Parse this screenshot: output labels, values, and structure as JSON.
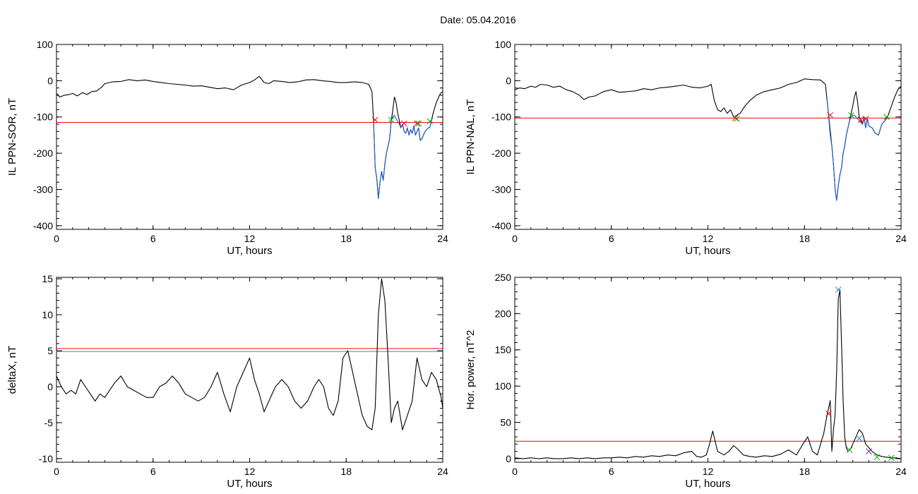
{
  "figure_title": "Date:  05.04.2016",
  "chart_data": [
    {
      "type": "line",
      "xlabel": "UT, hours",
      "ylabel": "IL PPN-SOR, nT",
      "xlim": [
        0,
        24
      ],
      "ylim": [
        -410,
        100
      ],
      "xticks": [
        "0",
        "6",
        "12",
        "18",
        "24"
      ],
      "yticks": [
        "100",
        "0",
        "-100",
        "-200",
        "-300",
        "-400"
      ],
      "grid": false,
      "series": [
        {
          "color": "#000000",
          "x": [
            0,
            0.2,
            0.5,
            0.8,
            1,
            1.3,
            1.6,
            1.9,
            2.2,
            2.5,
            2.8,
            3,
            3.5,
            4,
            4.5,
            5,
            5.5,
            6,
            6.5,
            7,
            7.5,
            8,
            8.5,
            9,
            9.5,
            10,
            10.5,
            11,
            11.5,
            12,
            12.3,
            12.6,
            12.9,
            13.2,
            13.5,
            14,
            14.5,
            15,
            15.5,
            16,
            16.5,
            17,
            17.5,
            18,
            18.5,
            19,
            19.4,
            19.6,
            19.7,
            19.8,
            19.9,
            20,
            20.1,
            20.2,
            20.3,
            20.4,
            20.5,
            20.6,
            20.7,
            20.8,
            20.9,
            21,
            21.1,
            21.2,
            21.3,
            21.4,
            21.5,
            21.6,
            21.7,
            21.8,
            21.9,
            22,
            22.1,
            22.2,
            22.3,
            22.4,
            22.5,
            22.6,
            22.7,
            22.8,
            22.9,
            23,
            23.1,
            23.2,
            23.3,
            23.4,
            23.5,
            23.6,
            23.7,
            23.8,
            23.9,
            24
          ],
          "y": [
            -35,
            -45,
            -40,
            -38,
            -35,
            -42,
            -33,
            -38,
            -30,
            -28,
            -18,
            -8,
            -3,
            -2,
            3,
            0,
            2,
            -2,
            -5,
            -8,
            -10,
            -12,
            -15,
            -14,
            -18,
            -22,
            -20,
            -25,
            -12,
            -5,
            2,
            12,
            -5,
            -8,
            0,
            -2,
            -5,
            -3,
            2,
            3,
            0,
            -2,
            -5,
            -5,
            -3,
            -5,
            -10,
            -30,
            -110,
            -240,
            -270,
            -325,
            -280,
            -250,
            -275,
            -230,
            -200,
            -180,
            -160,
            -110,
            -80,
            -45,
            -60,
            -90,
            -110,
            -130,
            -120,
            -140,
            -145,
            -130,
            -150,
            -135,
            -145,
            -125,
            -150,
            -140,
            -130,
            -165,
            -160,
            -150,
            -140,
            -135,
            -130,
            -128,
            -110,
            -90,
            -75,
            -60,
            -50,
            -40,
            -33,
            -30
          ]
        },
        {
          "color": "#1f5fd0",
          "x": [
            19.7,
            19.8,
            19.9,
            20,
            20.1,
            20.2,
            20.3,
            20.4,
            20.5,
            20.6,
            20.7,
            20.8,
            20.9,
            21,
            21.1,
            21.2,
            21.3,
            21.4,
            21.5,
            21.6,
            21.7,
            21.8,
            21.9,
            22,
            22.1,
            22.2,
            22.3,
            22.4,
            22.5,
            22.6,
            22.7,
            22.8,
            22.9,
            23,
            23.1,
            23.2,
            23.3
          ],
          "y": [
            -110,
            -240,
            -270,
            -325,
            -280,
            -250,
            -275,
            -230,
            -200,
            -180,
            -160,
            -110,
            -100,
            -95,
            -105,
            -112,
            -120,
            -130,
            -120,
            -140,
            -145,
            -130,
            -150,
            -135,
            -145,
            -125,
            -150,
            -140,
            -130,
            -165,
            -160,
            -150,
            -140,
            -135,
            -130,
            -128,
            -110
          ]
        }
      ],
      "hlines": [
        {
          "y": -115,
          "color": "#ff0000"
        }
      ],
      "markers": [
        {
          "x": 19.8,
          "y": -108,
          "color": "#ff0000"
        },
        {
          "x": 20.8,
          "y": -108,
          "color": "#00b000"
        },
        {
          "x": 21.6,
          "y": -118,
          "color": "#ff0000"
        },
        {
          "x": 22.4,
          "y": -118,
          "color": "#ff0000"
        },
        {
          "x": 22.5,
          "y": -118,
          "color": "#00b000"
        },
        {
          "x": 23.2,
          "y": -112,
          "color": "#00b000"
        }
      ]
    },
    {
      "type": "line",
      "xlabel": "UT, hours",
      "ylabel": "IL PPN-NAL, nT",
      "xlim": [
        0,
        24
      ],
      "ylim": [
        -410,
        100
      ],
      "xticks": [
        "0",
        "6",
        "12",
        "18",
        "24"
      ],
      "yticks": [
        "100",
        "0",
        "-100",
        "-200",
        "-300",
        "-400"
      ],
      "grid": false,
      "series": [
        {
          "color": "#000000",
          "x": [
            0,
            0.3,
            0.6,
            1,
            1.3,
            1.6,
            2,
            2.4,
            2.8,
            3.2,
            3.6,
            4,
            4.3,
            4.6,
            5,
            5.5,
            6,
            6.5,
            7,
            7.5,
            8,
            8.5,
            9,
            9.5,
            10,
            10.5,
            11,
            11.5,
            12,
            12.2,
            12.4,
            12.6,
            12.8,
            13,
            13.2,
            13.4,
            13.6,
            13.8,
            14,
            14.3,
            14.6,
            15,
            15.5,
            16,
            16.5,
            17,
            17.5,
            18,
            18.5,
            19,
            19.3,
            19.5,
            19.7,
            19.8,
            19.9,
            20,
            20.1,
            20.2,
            20.3,
            20.4,
            20.5,
            20.6,
            20.7,
            20.8,
            20.9,
            21,
            21.1,
            21.2,
            21.3,
            21.4,
            21.5,
            21.6,
            21.7,
            21.8,
            21.9,
            22,
            22.2,
            22.4,
            22.6,
            22.8,
            23,
            23.2,
            23.4,
            23.6,
            23.8,
            24
          ],
          "y": [
            -25,
            -20,
            -22,
            -15,
            -18,
            -10,
            -12,
            -18,
            -15,
            -25,
            -30,
            -40,
            -52,
            -45,
            -42,
            -30,
            -25,
            -32,
            -30,
            -28,
            -22,
            -25,
            -20,
            -18,
            -15,
            -12,
            -18,
            -20,
            -15,
            -10,
            -55,
            -80,
            -85,
            -75,
            -90,
            -80,
            -100,
            -95,
            -90,
            -70,
            -55,
            -40,
            -30,
            -25,
            -20,
            -10,
            -5,
            5,
            3,
            2,
            -10,
            -95,
            -180,
            -230,
            -300,
            -330,
            -290,
            -260,
            -240,
            -200,
            -180,
            -150,
            -130,
            -110,
            -90,
            -70,
            -45,
            -30,
            -60,
            -100,
            -110,
            -120,
            -100,
            -130,
            -105,
            -125,
            -130,
            -145,
            -150,
            -120,
            -110,
            -95,
            -70,
            -45,
            -25,
            -15
          ]
        },
        {
          "color": "#1f5fd0",
          "x": [
            19.4,
            19.6,
            19.7,
            19.8,
            19.9,
            20,
            20.1,
            20.2,
            20.3,
            20.4,
            20.5,
            20.6,
            20.7,
            20.8,
            20.9,
            21,
            21.1,
            21.2,
            21.3,
            21.4,
            21.5,
            21.6,
            21.7,
            21.8,
            21.9,
            22,
            22.2,
            22.4,
            22.6,
            22.8,
            23,
            23.2
          ],
          "y": [
            -50,
            -150,
            -180,
            -230,
            -300,
            -330,
            -290,
            -260,
            -240,
            -200,
            -180,
            -150,
            -130,
            -110,
            -100,
            -95,
            -95,
            -100,
            -105,
            -110,
            -115,
            -120,
            -100,
            -130,
            -105,
            -125,
            -130,
            -145,
            -150,
            -120,
            -110,
            -100
          ]
        }
      ],
      "hlines": [
        {
          "y": -103,
          "color": "#ff0000"
        }
      ],
      "markers": [
        {
          "x": 13.7,
          "y": -103,
          "color": "#ff0000"
        },
        {
          "x": 13.8,
          "y": -105,
          "color": "#00b000"
        },
        {
          "x": 19.6,
          "y": -95,
          "color": "#ff0000"
        },
        {
          "x": 20.9,
          "y": -95,
          "color": "#00b000"
        },
        {
          "x": 21.5,
          "y": -108,
          "color": "#ff0000"
        },
        {
          "x": 21.8,
          "y": -105,
          "color": "#ff0000"
        },
        {
          "x": 23.1,
          "y": -100,
          "color": "#00b000"
        }
      ]
    },
    {
      "type": "line",
      "xlabel": "UT, hours",
      "ylabel": "deltaX, nT",
      "xlim": [
        0,
        24
      ],
      "ylim": [
        -10.5,
        15.2
      ],
      "xticks": [
        "0",
        "6",
        "12",
        "18",
        "24"
      ],
      "yticks": [
        "15",
        "10",
        "5",
        "0",
        "-5",
        "-10"
      ],
      "grid": false,
      "series": [
        {
          "color": "#000000",
          "x": [
            0,
            0.3,
            0.6,
            0.9,
            1.2,
            1.5,
            1.8,
            2.1,
            2.4,
            2.7,
            3,
            3.3,
            3.6,
            4,
            4.4,
            4.8,
            5.2,
            5.6,
            6,
            6.4,
            6.8,
            7.2,
            7.6,
            8,
            8.4,
            8.8,
            9.2,
            9.6,
            10,
            10.4,
            10.8,
            11.2,
            11.6,
            12,
            12.3,
            12.6,
            12.9,
            13.2,
            13.6,
            14,
            14.4,
            14.8,
            15.2,
            15.6,
            16,
            16.3,
            16.6,
            16.9,
            17.2,
            17.5,
            17.8,
            18.1,
            18.4,
            18.7,
            19,
            19.3,
            19.6,
            19.8,
            20,
            20.2,
            20.4,
            20.6,
            20.8,
            21,
            21.2,
            21.5,
            21.8,
            22.1,
            22.4,
            22.7,
            23,
            23.3,
            23.6,
            23.9,
            24
          ],
          "y": [
            1.5,
            0,
            -1,
            -0.5,
            -1,
            1,
            0,
            -1,
            -2,
            -1,
            -1.5,
            -0.5,
            0.5,
            1.5,
            0,
            -0.5,
            -1,
            -1.5,
            -1.5,
            0,
            0.5,
            1.5,
            0.5,
            -1,
            -1.5,
            -2,
            -1.5,
            0,
            2,
            -1,
            -3.5,
            0,
            2,
            4,
            1,
            -1,
            -3.5,
            -2,
            0,
            1,
            0,
            -2,
            -3,
            -2,
            0,
            1,
            0,
            -3,
            -4,
            -2,
            4,
            5,
            2,
            -1,
            -4,
            -5.5,
            -6,
            -3,
            10,
            15,
            12,
            4,
            -5,
            -3,
            -2,
            -6,
            -4,
            -2,
            4,
            1,
            0,
            2,
            1,
            -1.5,
            -3
          ]
        }
      ],
      "hlines": [
        {
          "y": 5.3,
          "color": "#ff0000"
        },
        {
          "y": 4.9,
          "color": "#1f8fd0"
        }
      ],
      "markers": []
    },
    {
      "type": "line",
      "xlabel": "UT, hours",
      "ylabel": "Hor. power, nT^2",
      "xlim": [
        0,
        24
      ],
      "ylim": [
        -5,
        250
      ],
      "xticks": [
        "0",
        "6",
        "12",
        "18",
        "24"
      ],
      "yticks": [
        "250",
        "200",
        "150",
        "100",
        "50",
        "0"
      ],
      "grid": false,
      "series": [
        {
          "color": "#000000",
          "x": [
            0,
            0.5,
            1,
            1.5,
            2,
            2.5,
            3,
            3.5,
            4,
            4.5,
            5,
            5.5,
            6,
            6.5,
            7,
            7.5,
            8,
            8.5,
            9,
            9.5,
            10,
            10.5,
            11,
            11.3,
            11.6,
            11.9,
            12.1,
            12.3,
            12.6,
            13,
            13.3,
            13.6,
            13.9,
            14.2,
            14.6,
            15,
            15.5,
            16,
            16.5,
            17,
            17.5,
            17.9,
            18.2,
            18.5,
            18.8,
            19,
            19.2,
            19.4,
            19.6,
            19.7,
            19.8,
            19.9,
            20,
            20.1,
            20.2,
            20.3,
            20.4,
            20.5,
            20.6,
            20.7,
            20.8,
            20.9,
            21,
            21.2,
            21.4,
            21.6,
            21.8,
            22,
            22.2,
            22.5,
            22.8,
            23.1,
            23.4,
            23.7,
            24
          ],
          "y": [
            1,
            0,
            1,
            0,
            1,
            0,
            0,
            1,
            0,
            1,
            0,
            1,
            1,
            2,
            1,
            3,
            2,
            4,
            3,
            5,
            4,
            8,
            10,
            3,
            2,
            5,
            20,
            38,
            10,
            5,
            10,
            18,
            12,
            5,
            3,
            2,
            4,
            3,
            6,
            12,
            5,
            20,
            30,
            10,
            5,
            20,
            35,
            60,
            80,
            10,
            40,
            60,
            120,
            220,
            233,
            160,
            80,
            30,
            15,
            10,
            12,
            15,
            20,
            30,
            40,
            35,
            20,
            15,
            10,
            5,
            3,
            2,
            1,
            1,
            0
          ]
        }
      ],
      "hlines": [
        {
          "y": 24,
          "color": "#ff0000"
        }
      ],
      "markers": [
        {
          "x": 19.5,
          "y": 62,
          "color": "#ff0000"
        },
        {
          "x": 20.1,
          "y": 233,
          "color": "#1f8fd0"
        },
        {
          "x": 20.8,
          "y": 12,
          "color": "#00b000"
        },
        {
          "x": 21.4,
          "y": 28,
          "color": "#1f8fd0"
        },
        {
          "x": 22.0,
          "y": 10,
          "color": "#7a2aa0"
        },
        {
          "x": 22.5,
          "y": 2,
          "color": "#00b000"
        },
        {
          "x": 23.4,
          "y": 1,
          "color": "#00b000"
        }
      ]
    }
  ]
}
